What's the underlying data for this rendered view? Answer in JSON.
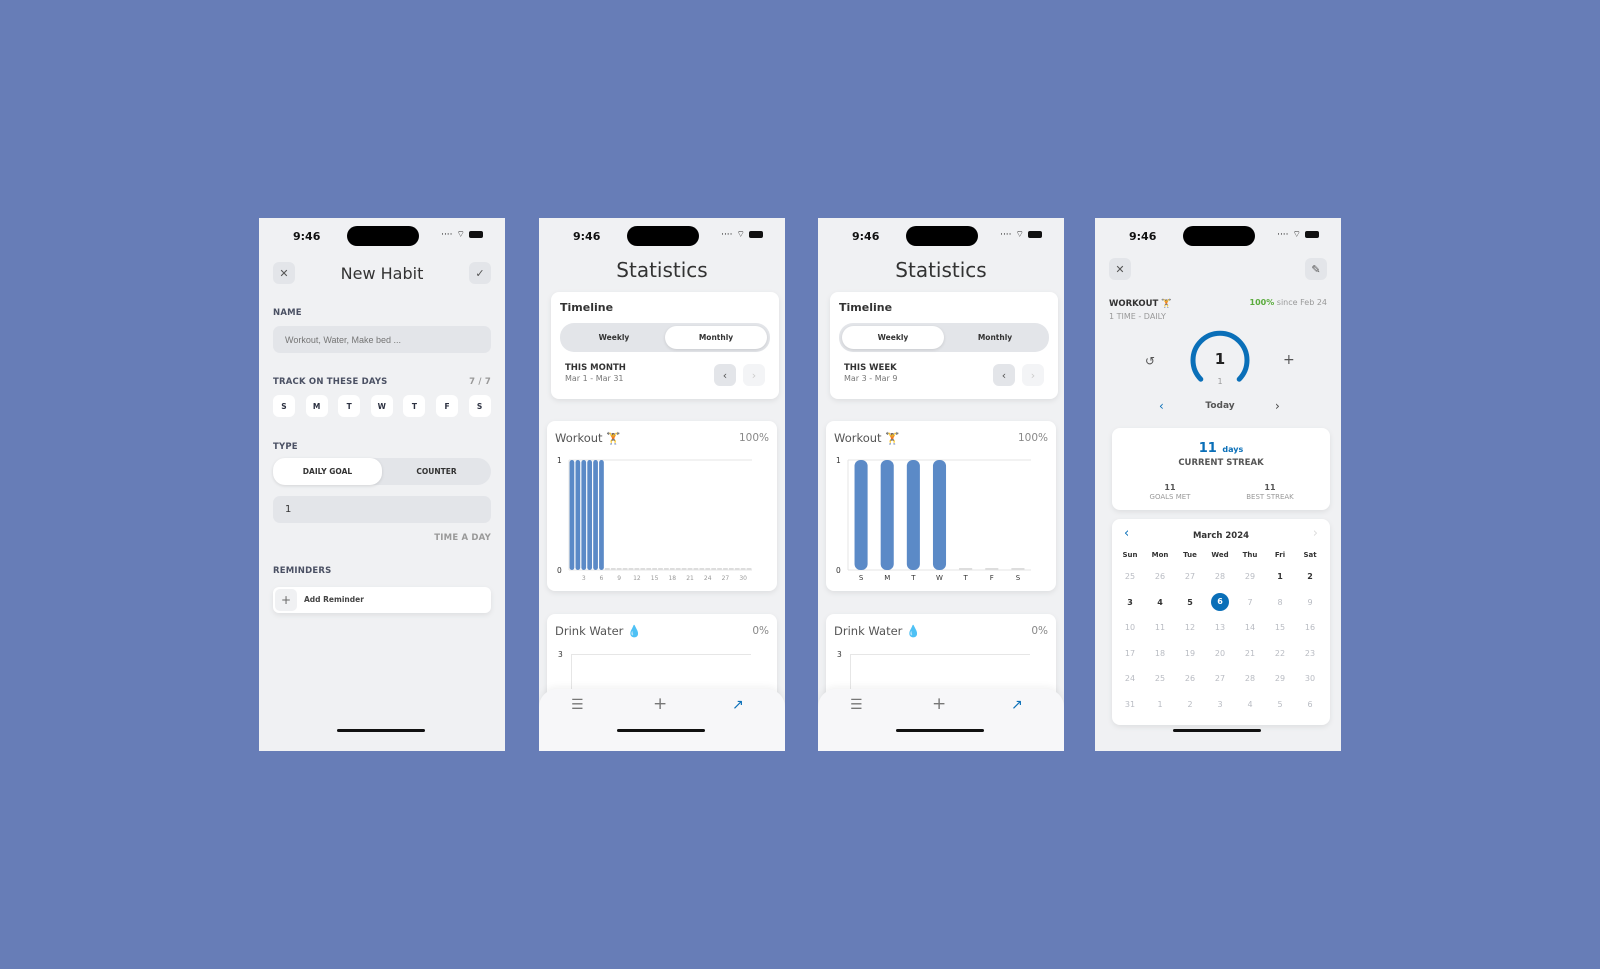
{
  "status": {
    "time": "9:46"
  },
  "colors": {
    "background": "#677db7",
    "accent": "#0a6fb8",
    "bar": "#5b8ac7",
    "green": "#5aab3c"
  },
  "new_habit": {
    "title": "New Habit",
    "close_icon": "close-icon",
    "confirm_icon": "check-icon",
    "name_label": "NAME",
    "name_placeholder": "Workout, Water, Make bed ...",
    "days_label": "TRACK ON THESE DAYS",
    "days_count": "7 / 7",
    "days": [
      "S",
      "M",
      "T",
      "W",
      "T",
      "F",
      "S"
    ],
    "type_label": "TYPE",
    "type_options": [
      "DAILY GOAL",
      "COUNTER"
    ],
    "type_selected": "DAILY GOAL",
    "goal_value": "1",
    "goal_unit": "TIME A DAY",
    "reminders_label": "REMINDERS",
    "add_reminder": "Add Reminder"
  },
  "stats_monthly": {
    "title": "Statistics",
    "timeline": "Timeline",
    "tabs": [
      "Weekly",
      "Monthly"
    ],
    "selected": "Monthly",
    "period": "THIS MONTH",
    "range": "Mar 1 - Mar 31",
    "workout": {
      "name": "Workout 🏋",
      "pct": "100%"
    },
    "water": {
      "name": "Drink Water 💧",
      "pct": "0%",
      "ymax_label": "3"
    }
  },
  "stats_weekly": {
    "title": "Statistics",
    "timeline": "Timeline",
    "tabs": [
      "Weekly",
      "Monthly"
    ],
    "selected": "Weekly",
    "period": "THIS WEEK",
    "range": "Mar 3 - Mar 9",
    "workout": {
      "name": "Workout 🏋",
      "pct": "100%"
    },
    "water": {
      "name": "Drink Water 💧",
      "pct": "0%",
      "ymax_label": "3"
    }
  },
  "tabbar": {
    "icons": [
      "list-icon",
      "plus-icon",
      "trending-up-icon"
    ]
  },
  "chart_data": [
    {
      "type": "bar",
      "title": "Workout",
      "ylim": [
        0,
        1
      ],
      "yticks": [
        "0",
        "1"
      ],
      "categories": [
        "1",
        "2",
        "3",
        "4",
        "5",
        "6",
        "7",
        "8",
        "9",
        "10",
        "11",
        "12",
        "13",
        "14",
        "15",
        "16",
        "17",
        "18",
        "19",
        "20",
        "21",
        "22",
        "23",
        "24",
        "25",
        "26",
        "27",
        "28",
        "29",
        "30",
        "31"
      ],
      "xtick_labels": [
        "3",
        "6",
        "9",
        "12",
        "15",
        "18",
        "21",
        "24",
        "27",
        "30"
      ],
      "values": [
        1,
        1,
        1,
        1,
        1,
        1,
        0,
        0,
        0,
        0,
        0,
        0,
        0,
        0,
        0,
        0,
        0,
        0,
        0,
        0,
        0,
        0,
        0,
        0,
        0,
        0,
        0,
        0,
        0,
        0,
        0
      ]
    },
    {
      "type": "bar",
      "title": "Workout",
      "ylim": [
        0,
        1
      ],
      "yticks": [
        "0",
        "1"
      ],
      "categories": [
        "S",
        "M",
        "T",
        "W",
        "T",
        "F",
        "S"
      ],
      "values": [
        1,
        1,
        1,
        1,
        0,
        0,
        0
      ]
    }
  ],
  "detail": {
    "habit": "WORKOUT 🏋",
    "schedule": "1 TIME - DAILY",
    "pct": "100%",
    "since": "since Feb 24",
    "count": "1",
    "goal": "1",
    "progress": 1,
    "day": "Today",
    "streak_value": "11",
    "streak_unit": "days",
    "streak_label": "CURRENT STREAK",
    "goals_met": "11",
    "goals_met_label": "GOALS MET",
    "best_streak": "11",
    "best_streak_label": "BEST STREAK",
    "month": "March 2024",
    "weekdays": [
      "Sun",
      "Mon",
      "Tue",
      "Wed",
      "Thu",
      "Fri",
      "Sat"
    ],
    "weeks": [
      [
        "25",
        "26",
        "27",
        "28",
        "29",
        "1",
        "2"
      ],
      [
        "3",
        "4",
        "5",
        "6",
        "7",
        "8",
        "9"
      ],
      [
        "10",
        "11",
        "12",
        "13",
        "14",
        "15",
        "16"
      ],
      [
        "17",
        "18",
        "19",
        "20",
        "21",
        "22",
        "23"
      ],
      [
        "24",
        "25",
        "26",
        "27",
        "28",
        "29",
        "30"
      ],
      [
        "31",
        "1",
        "2",
        "3",
        "4",
        "5",
        "6"
      ]
    ],
    "completed_days": [
      "1",
      "2",
      "3",
      "4",
      "5"
    ],
    "selected_day": "6"
  }
}
